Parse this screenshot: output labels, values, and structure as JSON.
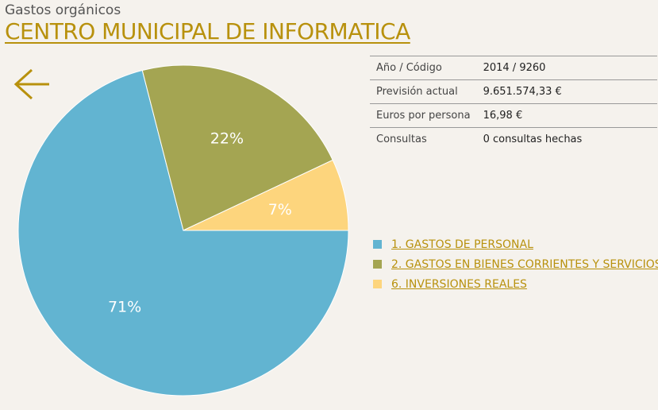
{
  "header": {
    "subtitle": "Gastos orgánicos",
    "title": "CENTRO MUNICIPAL DE INFORMATICA"
  },
  "back_button": {
    "icon": "arrow-left-icon",
    "color": "#b8910d"
  },
  "info": [
    {
      "key": "Año / Código",
      "value": "2014 / 9260"
    },
    {
      "key": "Previsión actual",
      "value": "9.651.574,33 €"
    },
    {
      "key": "Euros por persona",
      "value": "16,98 €"
    },
    {
      "key": "Consultas",
      "value": "0 consultas hechas"
    }
  ],
  "chart_data": {
    "type": "pie",
    "title": "",
    "labels": [
      "1. GASTOS DE PERSONAL",
      "2. GASTOS EN BIENES CORRIENTES Y SERVICIOS",
      "6. INVERSIONES REALES"
    ],
    "values": [
      71,
      22,
      7
    ],
    "value_labels": [
      "71%",
      "22%",
      "7%"
    ],
    "colors": [
      "#62b4d1",
      "#a4a552",
      "#fdd57d"
    ],
    "legend_position": "right"
  }
}
